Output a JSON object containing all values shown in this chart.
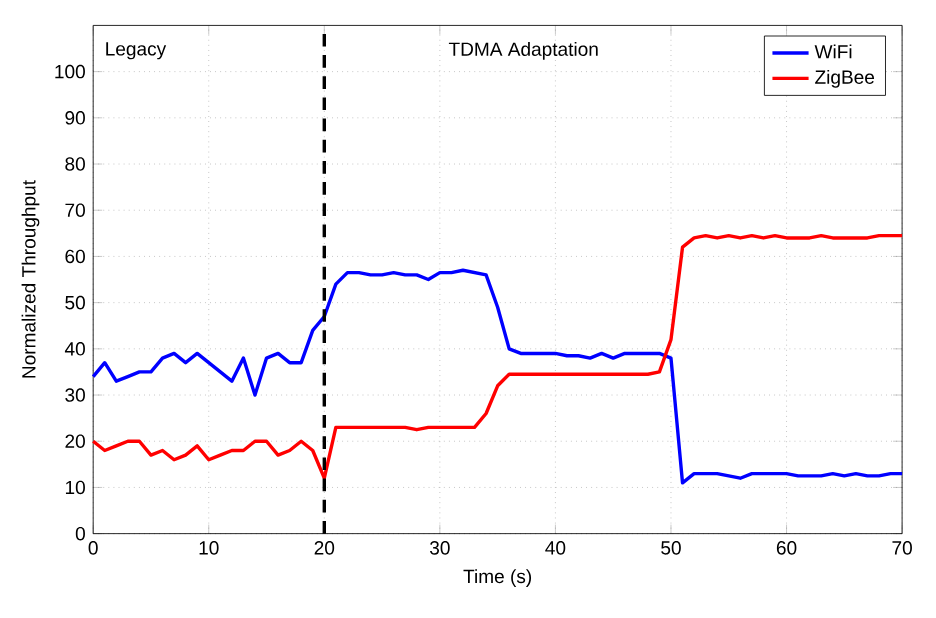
{
  "chart_data": {
    "type": "line",
    "xlabel": "Time (s)",
    "ylabel": "Normalized Throughput",
    "x": [
      0,
      1,
      2,
      3,
      4,
      5,
      6,
      7,
      8,
      9,
      10,
      11,
      12,
      13,
      14,
      15,
      16,
      17,
      18,
      19,
      20,
      21,
      22,
      23,
      24,
      25,
      26,
      27,
      28,
      29,
      30,
      31,
      32,
      33,
      34,
      35,
      36,
      37,
      38,
      39,
      40,
      41,
      42,
      43,
      44,
      45,
      46,
      47,
      48,
      49,
      50,
      51,
      52,
      53,
      54,
      55,
      56,
      57,
      58,
      59,
      60,
      61,
      62,
      63,
      64,
      65,
      66,
      67,
      68,
      69,
      70
    ],
    "series": [
      {
        "name": "WiFi",
        "color": "#0000ff",
        "values": [
          34,
          37,
          33,
          34,
          35,
          35,
          38,
          39,
          37,
          39,
          37,
          35,
          33,
          38,
          30,
          38,
          39,
          37,
          37,
          44,
          47,
          54,
          56.5,
          56.5,
          56,
          56,
          56.5,
          56,
          56,
          55,
          56.5,
          56.5,
          57,
          56.5,
          56,
          49,
          40,
          39,
          39,
          39,
          39,
          38.5,
          38.5,
          38,
          39,
          38,
          39,
          39,
          39,
          39,
          38,
          11,
          13,
          13,
          13,
          12.5,
          12,
          13,
          13,
          13,
          13,
          12.5,
          12.5,
          12.5,
          13,
          12.5,
          13,
          12.5,
          12.5,
          13,
          13
        ]
      },
      {
        "name": "ZigBee",
        "color": "#ff0000",
        "values": [
          20,
          18,
          19,
          20,
          20,
          17,
          18,
          16,
          17,
          19,
          16,
          17,
          18,
          18,
          20,
          20,
          17,
          18,
          20,
          18,
          12,
          23,
          23,
          23,
          23,
          23,
          23,
          23,
          22.5,
          23,
          23,
          23,
          23,
          23,
          26,
          32,
          34.5,
          34.5,
          34.5,
          34.5,
          34.5,
          34.5,
          34.5,
          34.5,
          34.5,
          34.5,
          34.5,
          34.5,
          34.5,
          35,
          42,
          62,
          64,
          64.5,
          64,
          64.5,
          64,
          64.5,
          64,
          64.5,
          64,
          64,
          64,
          64.5,
          64,
          64,
          64,
          64,
          64.5,
          64.5,
          64.5
        ]
      }
    ],
    "xlim": [
      0,
      70
    ],
    "xticks": [
      0,
      10,
      20,
      30,
      40,
      50,
      60,
      70
    ],
    "ylim": [
      0,
      110
    ],
    "yticks": [
      0,
      10,
      20,
      30,
      40,
      50,
      60,
      70,
      80,
      90,
      100
    ],
    "ref_lines": [
      {
        "axis": "x",
        "value": 20,
        "color": "#000000",
        "line_style": "dashed"
      }
    ],
    "annotations": [
      "Legacy",
      "TDMA Adaptation"
    ],
    "grid": true,
    "legend": "top right",
    "line_style": "solid"
  }
}
